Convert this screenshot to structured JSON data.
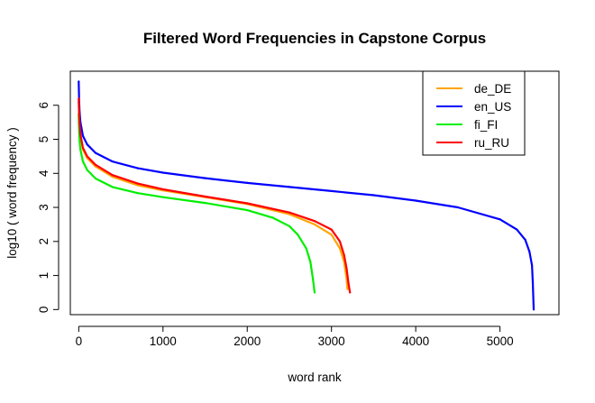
{
  "chart_data": {
    "type": "scatter",
    "title": "Filtered Word Frequencies in Capstone Corpus",
    "xlabel": "word rank",
    "ylabel": "log10 ( word frequency )",
    "xlim": [
      -100,
      5700
    ],
    "ylim": [
      -0.15,
      7.0
    ],
    "x_ticks": [
      0,
      1000,
      2000,
      3000,
      4000,
      5000
    ],
    "y_ticks": [
      0,
      1,
      2,
      3,
      4,
      5,
      6
    ],
    "grid": false,
    "legend_position": "top-right",
    "series": [
      {
        "name": "de_DE",
        "color": "#FFA500",
        "x": [
          0,
          5,
          10,
          20,
          50,
          100,
          200,
          400,
          700,
          1000,
          1500,
          2000,
          2500,
          2800,
          3000,
          3100,
          3150,
          3180,
          3190
        ],
        "y": [
          6.1,
          5.7,
          5.4,
          5.1,
          4.7,
          4.45,
          4.2,
          3.9,
          3.65,
          3.5,
          3.3,
          3.1,
          2.8,
          2.5,
          2.2,
          1.8,
          1.4,
          0.9,
          0.6
        ]
      },
      {
        "name": "en_US",
        "color": "#0000FF",
        "x": [
          0,
          5,
          10,
          20,
          50,
          100,
          200,
          400,
          700,
          1000,
          1500,
          2000,
          2500,
          3000,
          3500,
          4000,
          4500,
          5000,
          5200,
          5300,
          5350,
          5380,
          5390,
          5400
        ],
        "y": [
          6.7,
          6.1,
          5.8,
          5.5,
          5.1,
          4.85,
          4.6,
          4.35,
          4.15,
          4.02,
          3.86,
          3.72,
          3.6,
          3.48,
          3.36,
          3.2,
          3.0,
          2.65,
          2.35,
          2.05,
          1.7,
          1.3,
          0.8,
          0.0
        ]
      },
      {
        "name": "fi_FI",
        "color": "#00EE00",
        "x": [
          0,
          5,
          10,
          20,
          50,
          100,
          200,
          400,
          700,
          1000,
          1500,
          2000,
          2300,
          2500,
          2600,
          2700,
          2750,
          2780,
          2800
        ],
        "y": [
          5.75,
          5.2,
          4.95,
          4.7,
          4.35,
          4.1,
          3.85,
          3.6,
          3.42,
          3.3,
          3.13,
          2.92,
          2.7,
          2.45,
          2.2,
          1.8,
          1.4,
          0.9,
          0.5
        ]
      },
      {
        "name": "ru_RU",
        "color": "#FF0000",
        "x": [
          0,
          5,
          10,
          20,
          50,
          100,
          200,
          400,
          700,
          1000,
          1500,
          2000,
          2500,
          2800,
          3000,
          3100,
          3150,
          3180,
          3200,
          3220
        ],
        "y": [
          6.2,
          5.7,
          5.45,
          5.15,
          4.75,
          4.5,
          4.25,
          3.95,
          3.7,
          3.53,
          3.32,
          3.12,
          2.85,
          2.6,
          2.35,
          2.0,
          1.6,
          1.2,
          0.8,
          0.5
        ]
      }
    ]
  }
}
